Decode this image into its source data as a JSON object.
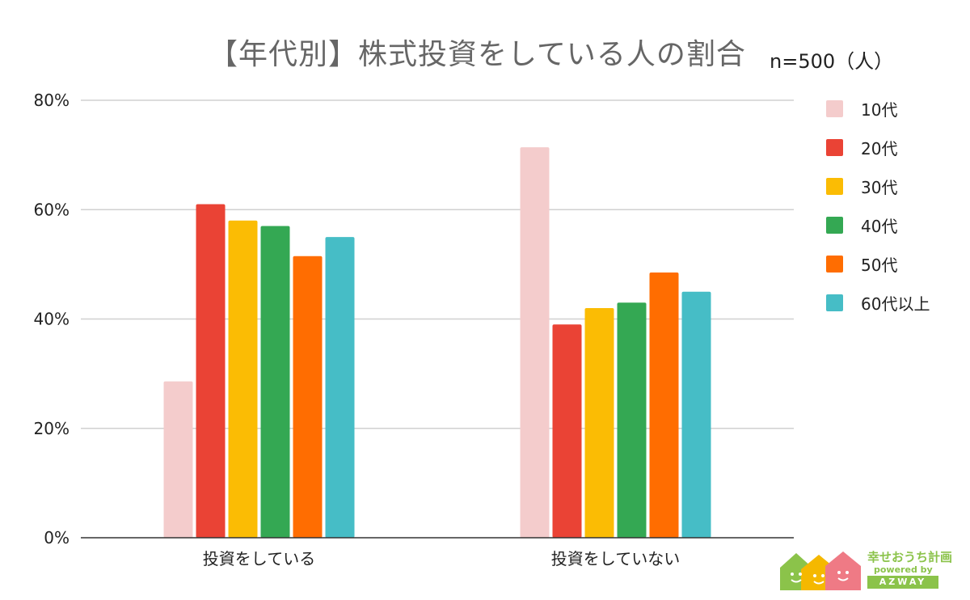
{
  "chart_data": {
    "type": "bar",
    "title": "【年代別】株式投資をしている人の割合",
    "subtitle": "n=500（人）",
    "categories": [
      "投資をしている",
      "投資をしていない"
    ],
    "series": [
      {
        "name": "10代",
        "color": "#f4cccc",
        "values": [
          28.6,
          71.4
        ]
      },
      {
        "name": "20代",
        "color": "#ea4335",
        "values": [
          61.0,
          39.0
        ]
      },
      {
        "name": "30代",
        "color": "#fbbc04",
        "values": [
          58.0,
          42.0
        ]
      },
      {
        "name": "40代",
        "color": "#34a853",
        "values": [
          57.0,
          43.0
        ]
      },
      {
        "name": "50代",
        "color": "#ff6d01",
        "values": [
          51.5,
          48.5
        ]
      },
      {
        "name": "60代以上",
        "color": "#46bdc6",
        "values": [
          55.0,
          45.0
        ]
      }
    ],
    "ylim": [
      0,
      80
    ],
    "yticks": [
      "0%",
      "20%",
      "40%",
      "60%",
      "80%"
    ],
    "ytick_values": [
      0,
      20,
      40,
      60,
      80
    ],
    "grid": true,
    "legend_position": "right"
  },
  "logo": {
    "name": "幸せおうち計画",
    "powered": "powered by",
    "brand": "AZWAY"
  }
}
